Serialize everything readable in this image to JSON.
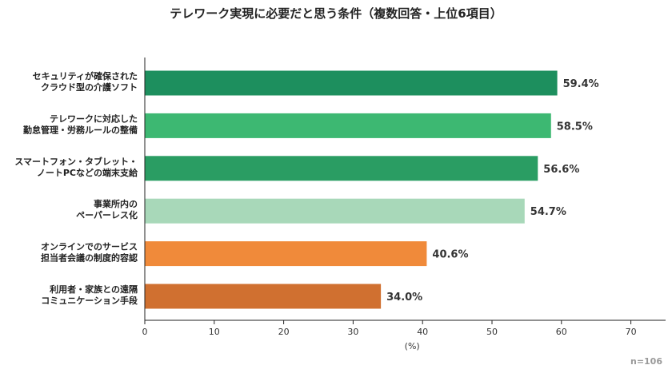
{
  "chart_data": {
    "type": "bar",
    "orientation": "horizontal",
    "title": "テレワーク実現に必要だと思う条件（複数回答・上位6項目）",
    "xlabel": "(%)",
    "xlim": [
      0,
      75
    ],
    "xticks": [
      0,
      10,
      20,
      30,
      40,
      50,
      60,
      70
    ],
    "grid": false,
    "categories": [
      [
        "セキュリティが確保された",
        "クラウド型の介護ソフト"
      ],
      [
        "テレワークに対応した",
        "勤怠管理・労務ルールの整備"
      ],
      [
        "スマートフォン・タブレット・",
        "ノートPCなどの端末支給"
      ],
      [
        "事業所内の",
        "ペーパーレス化"
      ],
      [
        "オンラインでのサービス",
        "担当者会議の制度的容認"
      ],
      [
        "利用者・家族との遠隔",
        "コミュニケーション手段"
      ]
    ],
    "values": [
      59.4,
      58.5,
      56.6,
      54.7,
      40.6,
      34.0
    ],
    "value_labels": [
      "59.4%",
      "58.5%",
      "56.6%",
      "54.7%",
      "40.6%",
      "34.0%"
    ],
    "colors": [
      "#1d8f5e",
      "#3db872",
      "#2a9d63",
      "#a8d8b9",
      "#f08a3a",
      "#d07030"
    ],
    "note": "n=106"
  }
}
